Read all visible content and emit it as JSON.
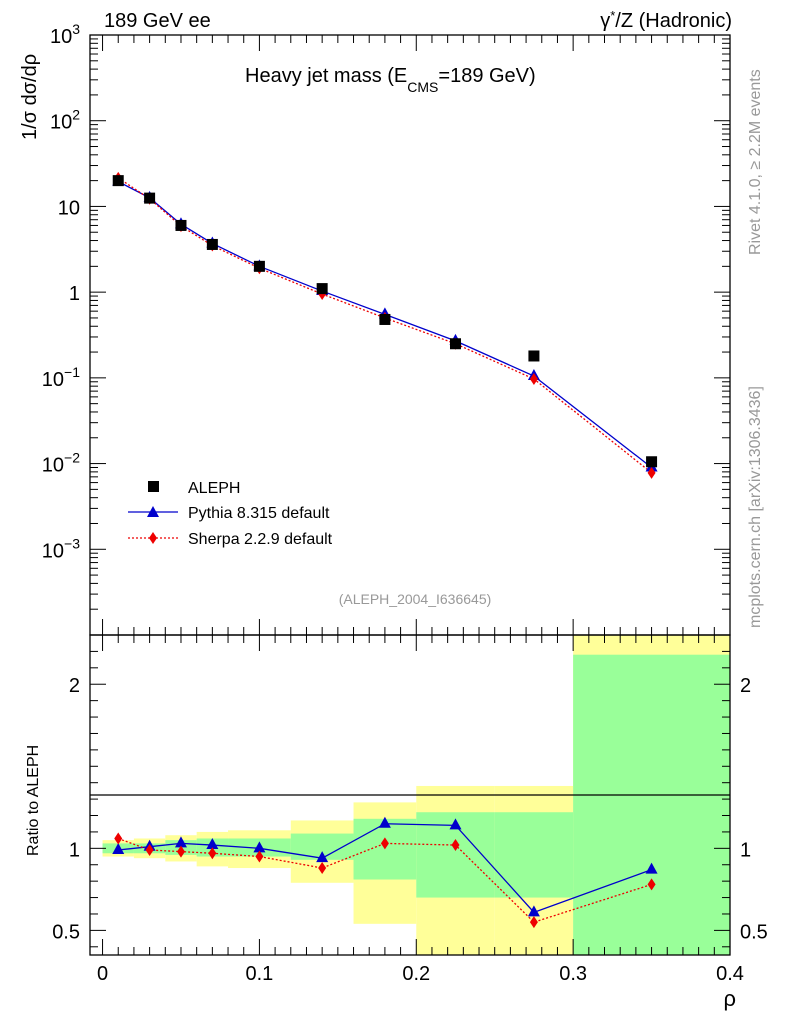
{
  "header": {
    "left": "189 GeV ee",
    "right_gamma": "γ",
    "right_star": "*",
    "right_rest": "/Z (Hadronic)"
  },
  "side_text": {
    "rivet": "Rivet 4.1.0, ≥ 2.2M events",
    "mcplots": "mcplots.cern.ch [arXiv:1306.3436]"
  },
  "plot_title": {
    "main": "Heavy jet mass (E",
    "sub": "CMS",
    "tail": "=189 GeV)"
  },
  "analysis_id": "(ALEPH_2004_I636645)",
  "ylabel_main": "1/σ  dσ/dρ",
  "ylabel_ratio": "Ratio to ALEPH",
  "xlabel": "ρ",
  "colors": {
    "data": "#000000",
    "pythia": "#0000cc",
    "sherpa": "#ee0000",
    "band_inner": "#99ff99",
    "band_outer": "#ffff99"
  },
  "chart_data": [
    {
      "type": "line",
      "yscale": "log",
      "ylim": [
        0.0001,
        1000
      ],
      "xlim": [
        -0.008,
        0.4
      ],
      "y_ticks": [
        {
          "v": 0.001,
          "base": "10",
          "exp": "−3"
        },
        {
          "v": 0.01,
          "base": "10",
          "exp": "−2"
        },
        {
          "v": 0.1,
          "base": "10",
          "exp": "−1"
        },
        {
          "v": 1,
          "base": "1",
          "exp": ""
        },
        {
          "v": 10,
          "base": "10",
          "exp": ""
        },
        {
          "v": 100,
          "base": "10",
          "exp": "2"
        },
        {
          "v": 1000,
          "base": "10",
          "exp": "3"
        }
      ],
      "x": [
        0.01,
        0.03,
        0.05,
        0.07,
        0.1,
        0.14,
        0.18,
        0.225,
        0.275,
        0.35
      ],
      "series": [
        {
          "name": "ALEPH",
          "marker": "square",
          "values": [
            20,
            12.5,
            6.0,
            3.6,
            2.0,
            1.1,
            0.48,
            0.25,
            0.18,
            0.0105
          ]
        },
        {
          "name": "Pythia 8.315 default",
          "marker": "triangle",
          "values": [
            19.5,
            12.6,
            6.2,
            3.7,
            2.0,
            1.03,
            0.55,
            0.27,
            0.105,
            0.009
          ]
        },
        {
          "name": "Sherpa 2.2.9 default",
          "marker": "diamond",
          "values": [
            21.5,
            12.3,
            5.9,
            3.5,
            1.9,
            0.95,
            0.5,
            0.25,
            0.097,
            0.0078
          ]
        }
      ]
    },
    {
      "type": "line",
      "ylim": [
        0.35,
        2.3
      ],
      "xlim": [
        -0.008,
        0.4
      ],
      "y_ticks": [
        "0.5",
        "1",
        "2"
      ],
      "x_ticks": [
        "0",
        "0.1",
        "0.2",
        "0.3",
        "0.4"
      ],
      "bins": [
        [
          0,
          0.02
        ],
        [
          0.02,
          0.04
        ],
        [
          0.04,
          0.06
        ],
        [
          0.06,
          0.08
        ],
        [
          0.08,
          0.12
        ],
        [
          0.12,
          0.16
        ],
        [
          0.16,
          0.2
        ],
        [
          0.2,
          0.25
        ],
        [
          0.25,
          0.3
        ],
        [
          0.3,
          0.4
        ]
      ],
      "band_inner": [
        [
          0.97,
          1.03
        ],
        [
          0.97,
          1.03
        ],
        [
          0.96,
          1.05
        ],
        [
          0.95,
          1.06
        ],
        [
          0.95,
          1.06
        ],
        [
          0.93,
          1.09
        ],
        [
          0.81,
          1.18
        ],
        [
          0.7,
          1.22
        ],
        [
          0.7,
          1.22
        ],
        [
          0.35,
          2.18
        ]
      ],
      "band_outer": [
        [
          0.95,
          1.05
        ],
        [
          0.94,
          1.06
        ],
        [
          0.92,
          1.08
        ],
        [
          0.89,
          1.1
        ],
        [
          0.88,
          1.11
        ],
        [
          0.79,
          1.17
        ],
        [
          0.54,
          1.28
        ],
        [
          0.35,
          1.38
        ],
        [
          0.35,
          1.38
        ],
        [
          0.35,
          2.3
        ]
      ],
      "series": [
        {
          "name": "Pythia 8.315 default",
          "values": [
            0.99,
            1.01,
            1.03,
            1.02,
            1.0,
            0.94,
            1.15,
            1.14,
            0.61,
            0.87
          ]
        },
        {
          "name": "Sherpa 2.2.9 default",
          "values": [
            1.06,
            0.99,
            0.98,
            0.97,
            0.95,
            0.88,
            1.03,
            1.02,
            0.55,
            0.78
          ]
        }
      ]
    }
  ]
}
